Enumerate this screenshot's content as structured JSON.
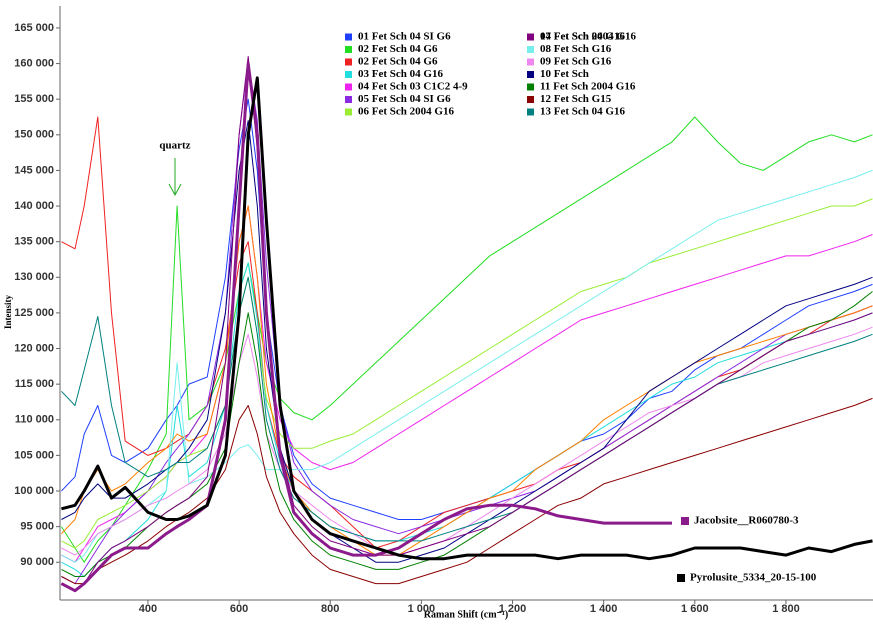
{
  "chart_data": {
    "type": "line",
    "x_label": "Raman Shift (cm⁻¹)",
    "y_label": "Intensity",
    "annotations": [
      {
        "text": "quartz",
        "x": 464
      }
    ],
    "xlim": [
      207,
      1991
    ],
    "ylim": [
      84700,
      167800
    ],
    "xticks": [
      400,
      600,
      800,
      {
        "value": 1000,
        "label": "1 000"
      },
      {
        "value": 1200,
        "label": "1 200"
      },
      {
        "value": 1400,
        "label": "1 400"
      },
      {
        "value": 1600,
        "label": "1 600"
      },
      {
        "value": 1800,
        "label": "1 800"
      }
    ],
    "yticks": [
      {
        "value": 90000,
        "label": "90 000"
      },
      {
        "value": 95000,
        "label": "95 000"
      },
      {
        "value": 100000,
        "label": "100 000"
      },
      {
        "value": 105000,
        "label": "105 000"
      },
      {
        "value": 110000,
        "label": "110 000"
      },
      {
        "value": 115000,
        "label": "115 000"
      },
      {
        "value": 120000,
        "label": "120 000"
      },
      {
        "value": 125000,
        "label": "125 000"
      },
      {
        "value": 130000,
        "label": "130 000"
      },
      {
        "value": 135000,
        "label": "135 000"
      },
      {
        "value": 140000,
        "label": "140 000"
      },
      {
        "value": 145000,
        "label": "145 000"
      },
      {
        "value": 150000,
        "label": "150 000"
      },
      {
        "value": 155000,
        "label": "155 000"
      },
      {
        "value": 160000,
        "label": "160 000"
      },
      {
        "value": 165000,
        "label": "165 000"
      }
    ],
    "x": [
      210,
      240,
      260,
      290,
      320,
      350,
      400,
      440,
      464,
      490,
      530,
      570,
      600,
      620,
      640,
      660,
      690,
      720,
      760,
      800,
      850,
      900,
      950,
      1000,
      1050,
      1100,
      1150,
      1200,
      1250,
      1300,
      1350,
      1400,
      1450,
      1500,
      1550,
      1600,
      1650,
      1700,
      1750,
      1800,
      1850,
      1900,
      1950,
      1990
    ],
    "series": [
      {
        "name": "01 Fet Sch 04 SI G6",
        "color": "#1f3fff",
        "values": [
          100000,
          102000,
          108000,
          112000,
          105000,
          104000,
          106000,
          110000,
          112000,
          115000,
          116000,
          130000,
          148000,
          155000,
          145000,
          125000,
          112000,
          105000,
          101000,
          99000,
          98000,
          97000,
          96000,
          96000,
          97000,
          98000,
          99000,
          101000,
          103000,
          105000,
          107000,
          108000,
          110000,
          113000,
          114000,
          117000,
          119000,
          120000,
          122000,
          124000,
          126000,
          127000,
          128000,
          129000
        ]
      },
      {
        "name": "02 Fet Sch 04 G6",
        "color": "#22dd22",
        "values": [
          95000,
          92000,
          90000,
          93000,
          95000,
          98000,
          103000,
          108000,
          140000,
          110000,
          112000,
          118000,
          128000,
          132000,
          125000,
          118000,
          113000,
          111000,
          110000,
          112000,
          115000,
          118000,
          121000,
          124000,
          127000,
          130000,
          133000,
          135000,
          137000,
          139000,
          141000,
          143000,
          145000,
          147000,
          149000,
          152500,
          149000,
          146000,
          145000,
          147000,
          149000,
          150000,
          149000,
          150000
        ]
      },
      {
        "name": "02 Fet Sch 04 G6",
        "color": "#ee2222",
        "values": [
          135000,
          134000,
          140000,
          152500,
          125000,
          107000,
          105000,
          106000,
          107000,
          108000,
          112000,
          120000,
          132000,
          135000,
          125000,
          112000,
          105000,
          102000,
          100000,
          98000,
          95000,
          92000,
          93000,
          95000,
          97000,
          98000,
          99000,
          100000,
          101000,
          103000,
          104000,
          106000,
          108000,
          110000,
          112000,
          114000,
          116000,
          117000,
          119000,
          121000,
          122000,
          124000,
          125000,
          126000
        ]
      },
      {
        "name": "03 Fet Sch 04 G16",
        "color": "#22dddd",
        "values": [
          90000,
          89000,
          88000,
          90000,
          92000,
          93000,
          96000,
          100000,
          112000,
          102000,
          104000,
          112000,
          128000,
          132000,
          124000,
          112000,
          104000,
          100000,
          97000,
          95000,
          94000,
          93000,
          93000,
          94000,
          95000,
          97000,
          99000,
          101000,
          103000,
          105000,
          107000,
          109000,
          111000,
          113000,
          115000,
          116000,
          118000,
          119000,
          120000,
          121000,
          122000,
          123000,
          124000,
          125000
        ]
      },
      {
        "name": "04 Fet Sch 03 C1C2 4-9",
        "color": "#ee22ee",
        "values": [
          91000,
          90000,
          92000,
          95000,
          96000,
          97000,
          100000,
          102000,
          104000,
          105000,
          108000,
          118000,
          135000,
          140000,
          130000,
          118000,
          110000,
          106000,
          104000,
          103000,
          104000,
          106000,
          108000,
          110000,
          112000,
          114000,
          116000,
          118000,
          120000,
          122000,
          124000,
          125000,
          126000,
          127000,
          128000,
          129000,
          130000,
          131000,
          132000,
          133000,
          133000,
          134000,
          135000,
          136000
        ]
      },
      {
        "name": "05 Fet Sch 04 SI G6",
        "color": "#8a2be2",
        "values": [
          88000,
          87000,
          89000,
          92000,
          95000,
          97000,
          100000,
          104000,
          106000,
          108000,
          112000,
          125000,
          150000,
          160500,
          152000,
          132000,
          112000,
          104000,
          100000,
          98000,
          96000,
          95000,
          94000,
          95000,
          96000,
          97000,
          98000,
          99000,
          100000,
          102000,
          104000,
          106000,
          108000,
          110000,
          112000,
          114000,
          116000,
          118000,
          120000,
          122000,
          123000,
          124000,
          125000,
          126000
        ]
      },
      {
        "name": "06 Fet Sch 2004 G16",
        "color": "#99ee33",
        "values": [
          93000,
          92000,
          93000,
          96000,
          97000,
          98000,
          100000,
          102000,
          104000,
          105000,
          106000,
          112000,
          125000,
          130000,
          122000,
          113000,
          108000,
          106000,
          106000,
          107000,
          108000,
          110000,
          112000,
          114000,
          116000,
          118000,
          120000,
          122000,
          124000,
          126000,
          128000,
          129000,
          130000,
          132000,
          133000,
          134000,
          135000,
          136000,
          137000,
          138000,
          139000,
          140000,
          140000,
          141000
        ]
      },
      {
        "name": "07 Fet Sch 2004 G16",
        "color": "#ff8000",
        "values": [
          94000,
          96000,
          100000,
          103000,
          100000,
          101000,
          104000,
          106000,
          108000,
          107000,
          108000,
          118000,
          135000,
          140000,
          130000,
          115000,
          105000,
          100000,
          97000,
          95000,
          93000,
          91000,
          91000,
          93000,
          95000,
          97000,
          99000,
          100000,
          103000,
          105000,
          107000,
          110000,
          112000,
          114000,
          116000,
          118000,
          119000,
          120000,
          121000,
          122000,
          123000,
          124000,
          125000,
          126000
        ]
      },
      {
        "name": "08 Fet Sch G16",
        "color": "#77eeee",
        "values": [
          91000,
          90000,
          91000,
          94000,
          95000,
          96000,
          98000,
          100000,
          118000,
          101000,
          102000,
          104000,
          106000,
          106500,
          105000,
          103000,
          103000,
          103000,
          103000,
          104000,
          106000,
          108000,
          110000,
          112000,
          114000,
          116000,
          118000,
          120000,
          122000,
          124000,
          126000,
          128000,
          130000,
          132000,
          134000,
          136000,
          138000,
          139000,
          140000,
          141000,
          142000,
          143000,
          144000,
          145000
        ]
      },
      {
        "name": "09 Fet Sch G16",
        "color": "#ee88ee",
        "values": [
          92000,
          91000,
          92000,
          94000,
          95000,
          96000,
          98000,
          99000,
          100000,
          101000,
          103000,
          108000,
          118000,
          122000,
          116000,
          108000,
          103000,
          100000,
          98000,
          96000,
          94000,
          92000,
          91000,
          92000,
          93000,
          95000,
          97000,
          99000,
          101000,
          103000,
          105000,
          107000,
          109000,
          111000,
          112000,
          113000,
          115000,
          116000,
          118000,
          119000,
          120000,
          121000,
          122000,
          123000
        ]
      },
      {
        "name": "10 Fet Sch",
        "color": "#000080",
        "values": [
          96000,
          97000,
          99000,
          101000,
          99000,
          99000,
          101000,
          103000,
          104000,
          106000,
          110000,
          125000,
          145000,
          152000,
          140000,
          120000,
          106000,
          100000,
          96000,
          94000,
          92000,
          90000,
          90000,
          91000,
          92000,
          94000,
          96000,
          98000,
          100000,
          102000,
          104000,
          106000,
          110000,
          114000,
          116000,
          118000,
          120000,
          122000,
          124000,
          126000,
          127000,
          128000,
          129000,
          130000
        ]
      },
      {
        "name": "11 Fet Sch 2004 G16",
        "color": "#008000",
        "values": [
          89000,
          88000,
          88000,
          90000,
          91000,
          92000,
          95000,
          97000,
          98000,
          99000,
          101000,
          106000,
          118000,
          125000,
          118000,
          108000,
          100000,
          96000,
          93000,
          91000,
          90000,
          89000,
          89000,
          90000,
          91000,
          93000,
          95000,
          97000,
          99000,
          101000,
          103000,
          105000,
          107000,
          109000,
          111000,
          113000,
          115000,
          117000,
          119000,
          121000,
          123000,
          124000,
          126000,
          128000
        ]
      },
      {
        "name": "12 Fet Sch G15",
        "color": "#8b0000",
        "values": [
          88000,
          87000,
          87000,
          89000,
          90000,
          91000,
          93000,
          95000,
          96000,
          97000,
          99000,
          103000,
          110000,
          112000,
          108000,
          102000,
          97000,
          94000,
          91000,
          89000,
          88000,
          87000,
          87000,
          88000,
          89000,
          90000,
          92000,
          94000,
          96000,
          98000,
          99000,
          101000,
          102000,
          103000,
          104000,
          105000,
          106000,
          107000,
          108000,
          109000,
          110000,
          111000,
          112000,
          113000
        ]
      },
      {
        "name": "13 Fet Sch 04 G16",
        "color": "#008080",
        "values": [
          114000,
          112000,
          117000,
          124500,
          112000,
          104000,
          102000,
          103000,
          104000,
          104000,
          106000,
          112000,
          125000,
          130000,
          122000,
          110000,
          103000,
          99000,
          97000,
          95000,
          94000,
          93000,
          93000,
          93000,
          94000,
          95000,
          96000,
          97000,
          99000,
          101000,
          103000,
          105000,
          107000,
          109000,
          111000,
          113000,
          115000,
          116000,
          117000,
          118000,
          119000,
          120000,
          121000,
          122000
        ]
      },
      {
        "name": "14 Fet Sch 04 G16",
        "color": "#800080",
        "values": [
          87000,
          86000,
          87000,
          90000,
          92000,
          93000,
          95000,
          97000,
          98000,
          99000,
          102000,
          118000,
          150000,
          161000,
          148000,
          125000,
          106000,
          98000,
          95000,
          93000,
          92000,
          91000,
          91000,
          92000,
          93000,
          94000,
          95000,
          97000,
          99000,
          101000,
          103000,
          105000,
          107000,
          109000,
          111000,
          113000,
          115000,
          117000,
          119000,
          121000,
          122000,
          123000,
          124000,
          125000
        ]
      },
      {
        "name": "Jacobsite__R060780-3",
        "color": "#8b1a8b",
        "reference": true,
        "values": [
          87000,
          86000,
          87000,
          89000,
          91000,
          92000,
          92000,
          94000,
          95000,
          96000,
          98000,
          110000,
          140000,
          160000,
          150000,
          125000,
          105000,
          97000,
          94000,
          92000,
          91000,
          91000,
          92000,
          94000,
          96000,
          97500,
          98000,
          98000,
          97500,
          96500,
          96000,
          95500,
          95500,
          95500,
          95500,
          null,
          null,
          null,
          null,
          null,
          null,
          null,
          null,
          null
        ]
      },
      {
        "name": "Pyrolusite_5334_20-15-100",
        "color": "#000000",
        "reference": true,
        "values": [
          97500,
          98000,
          100000,
          103500,
          99000,
          100500,
          97000,
          96000,
          96000,
          96500,
          98000,
          105000,
          125000,
          150000,
          158000,
          138000,
          112000,
          100000,
          96000,
          94000,
          93000,
          92000,
          91000,
          90500,
          90500,
          91000,
          91000,
          91000,
          91000,
          90500,
          91000,
          91000,
          91000,
          90500,
          91000,
          92000,
          92000,
          92000,
          91500,
          91000,
          92000,
          91500,
          92500,
          93000
        ]
      }
    ]
  }
}
